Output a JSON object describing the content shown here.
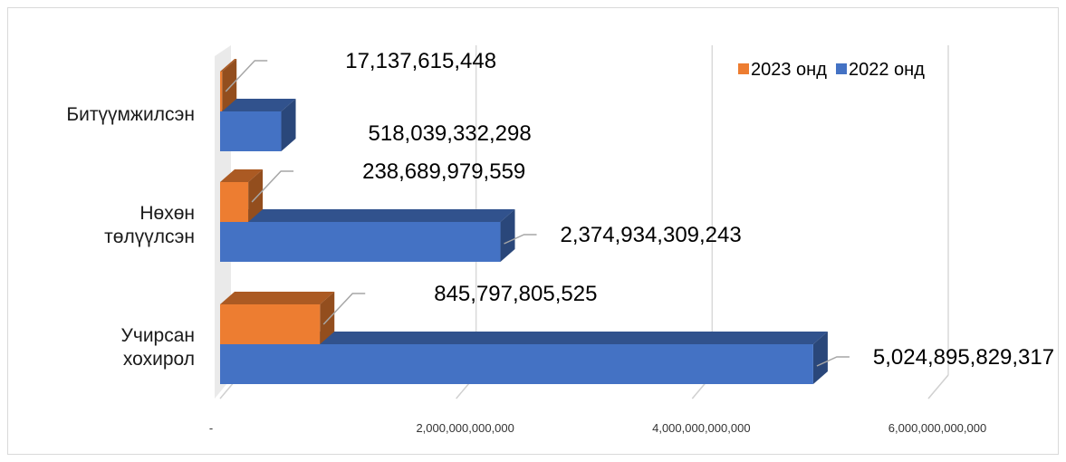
{
  "chart_data": {
    "type": "bar",
    "orientation": "horizontal",
    "style": "3d-clustered",
    "categories": [
      "Учирсан хохирол",
      "Нөхөн төлүүлсэн",
      "Битүүмжилсэн"
    ],
    "category_lines": [
      [
        "Учирсан",
        "хохирол"
      ],
      [
        "Нөхөн",
        "төлүүлсэн"
      ],
      [
        "Битүүмжилсэн"
      ]
    ],
    "series": [
      {
        "name": "2022 онд",
        "color": "#4472C4",
        "values": [
          5024895829317,
          2374934309243,
          518039332298
        ],
        "labels": [
          "5,024,895,829,317",
          "2,374,934,309,243",
          "518,039,332,298"
        ]
      },
      {
        "name": "2023 онд",
        "color": "#ED7D31",
        "values": [
          845797805525,
          238689979559,
          17137615448
        ],
        "labels": [
          "845,797,805,525",
          "238,689,979,559",
          "17,137,615,448"
        ]
      }
    ],
    "x_ticks": [
      0,
      2000000000000,
      4000000000000,
      6000000000000
    ],
    "x_tick_labels": [
      "-",
      "2,000,000,000,000",
      "4,000,000,000,000",
      "6,000,000,000,000"
    ],
    "xlim": [
      0,
      6000000000000
    ],
    "legend": {
      "placement": "top-right",
      "items": [
        {
          "label": "2023 онд",
          "color": "#ED7D31"
        },
        {
          "label": "2022 онд",
          "color": "#4472C4"
        }
      ]
    },
    "grid": true
  }
}
